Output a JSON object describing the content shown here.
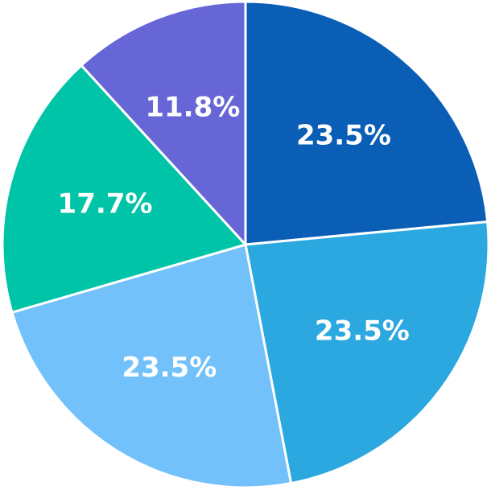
{
  "chart_data": {
    "type": "pie",
    "values": [
      23.5,
      23.5,
      23.5,
      17.7,
      11.8
    ],
    "value_labels": [
      "23.5%",
      "23.5%",
      "23.5%",
      "17.7%",
      "11.8%"
    ],
    "colors": [
      "#0a5eb6",
      "#2ba8e0",
      "#73c1fa",
      "#00c4a7",
      "#6766d6"
    ]
  }
}
